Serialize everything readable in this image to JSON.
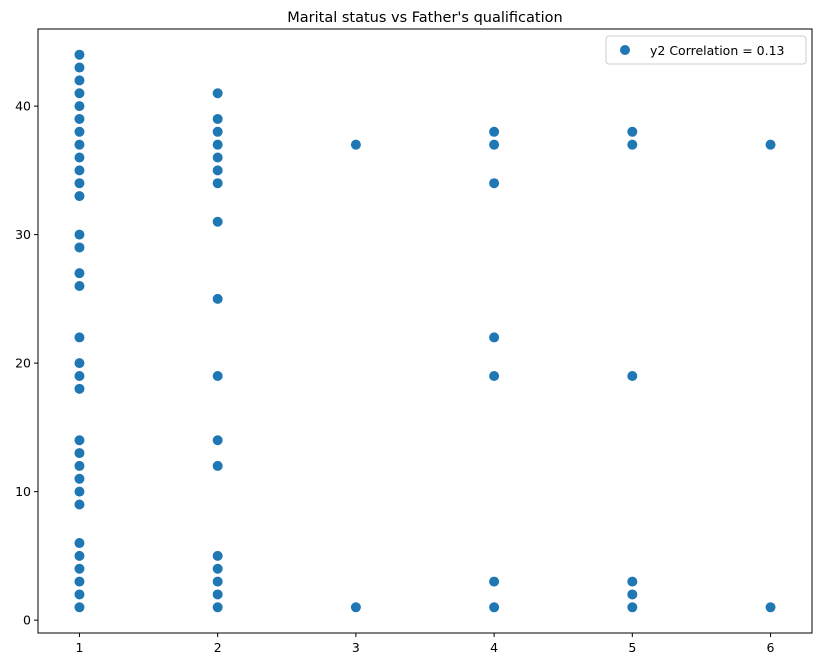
{
  "chart_data": {
    "type": "scatter",
    "title": "Marital status vs Father's qualification",
    "xlabel": "",
    "ylabel": "",
    "xlim": [
      0.7,
      6.3
    ],
    "ylim": [
      -1,
      46
    ],
    "xticks": [
      1,
      2,
      3,
      4,
      5,
      6
    ],
    "yticks": [
      0,
      10,
      20,
      30,
      40
    ],
    "grid": false,
    "legend_position": "top-right",
    "marker_color": "#1f77b4",
    "series": [
      {
        "name": "y2 Correlation = 0.13",
        "points": [
          [
            1,
            1
          ],
          [
            1,
            2
          ],
          [
            1,
            3
          ],
          [
            1,
            4
          ],
          [
            1,
            5
          ],
          [
            1,
            6
          ],
          [
            1,
            9
          ],
          [
            1,
            10
          ],
          [
            1,
            11
          ],
          [
            1,
            12
          ],
          [
            1,
            13
          ],
          [
            1,
            14
          ],
          [
            1,
            18
          ],
          [
            1,
            19
          ],
          [
            1,
            20
          ],
          [
            1,
            22
          ],
          [
            1,
            26
          ],
          [
            1,
            27
          ],
          [
            1,
            29
          ],
          [
            1,
            30
          ],
          [
            1,
            33
          ],
          [
            1,
            34
          ],
          [
            1,
            35
          ],
          [
            1,
            36
          ],
          [
            1,
            37
          ],
          [
            1,
            38
          ],
          [
            1,
            39
          ],
          [
            1,
            40
          ],
          [
            1,
            41
          ],
          [
            1,
            42
          ],
          [
            1,
            43
          ],
          [
            1,
            44
          ],
          [
            2,
            1
          ],
          [
            2,
            2
          ],
          [
            2,
            3
          ],
          [
            2,
            4
          ],
          [
            2,
            5
          ],
          [
            2,
            12
          ],
          [
            2,
            14
          ],
          [
            2,
            19
          ],
          [
            2,
            25
          ],
          [
            2,
            31
          ],
          [
            2,
            34
          ],
          [
            2,
            35
          ],
          [
            2,
            36
          ],
          [
            2,
            37
          ],
          [
            2,
            38
          ],
          [
            2,
            39
          ],
          [
            2,
            41
          ],
          [
            3,
            1
          ],
          [
            3,
            37
          ],
          [
            4,
            1
          ],
          [
            4,
            3
          ],
          [
            4,
            19
          ],
          [
            4,
            22
          ],
          [
            4,
            34
          ],
          [
            4,
            37
          ],
          [
            4,
            38
          ],
          [
            5,
            1
          ],
          [
            5,
            2
          ],
          [
            5,
            3
          ],
          [
            5,
            19
          ],
          [
            5,
            37
          ],
          [
            5,
            38
          ],
          [
            6,
            1
          ],
          [
            6,
            37
          ]
        ]
      }
    ]
  }
}
